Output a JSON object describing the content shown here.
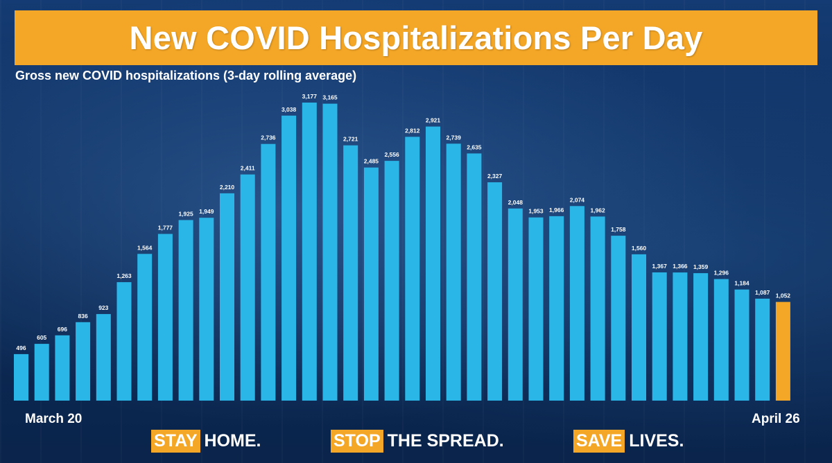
{
  "chart_data": {
    "type": "bar",
    "title": "New COVID Hospitalizations Per Day",
    "subtitle": "Gross new COVID hospitalizations (3-day rolling average)",
    "x_start_label": "March 20",
    "x_end_label": "April 26",
    "values": [
      496,
      605,
      696,
      836,
      923,
      1263,
      1564,
      1777,
      1925,
      1949,
      2210,
      2411,
      2736,
      3038,
      3177,
      3165,
      2721,
      2485,
      2556,
      2812,
      2921,
      2739,
      2635,
      2327,
      2048,
      1953,
      1966,
      2074,
      1962,
      1758,
      1560,
      1367,
      1366,
      1359,
      1296,
      1184,
      1087,
      1052
    ],
    "labels": [
      "496",
      "605",
      "696",
      "836",
      "923",
      "1,263",
      "1,564",
      "1,777",
      "1,925",
      "1,949",
      "2,210",
      "2,411",
      "2,736",
      "3,038",
      "3,177",
      "3,165",
      "2,721",
      "2,485",
      "2,556",
      "2,812",
      "2,921",
      "2,739",
      "2,635",
      "2,327",
      "2,048",
      "1,953",
      "1,966",
      "2,074",
      "1,962",
      "1,758",
      "1,560",
      "1,367",
      "1,366",
      "1,359",
      "1,296",
      "1,184",
      "1,087",
      "1,052"
    ],
    "ylim": [
      0,
      3177
    ],
    "bar_color": "#2ab7e8",
    "highlight_color": "#f4a626",
    "highlight_index": 37
  },
  "footer": [
    {
      "highlight": "STAY",
      "rest": "HOME."
    },
    {
      "highlight": "STOP",
      "rest": "THE SPREAD."
    },
    {
      "highlight": "SAVE",
      "rest": "LIVES."
    }
  ],
  "colors": {
    "banner": "#f4a626",
    "text": "#ffffff"
  }
}
